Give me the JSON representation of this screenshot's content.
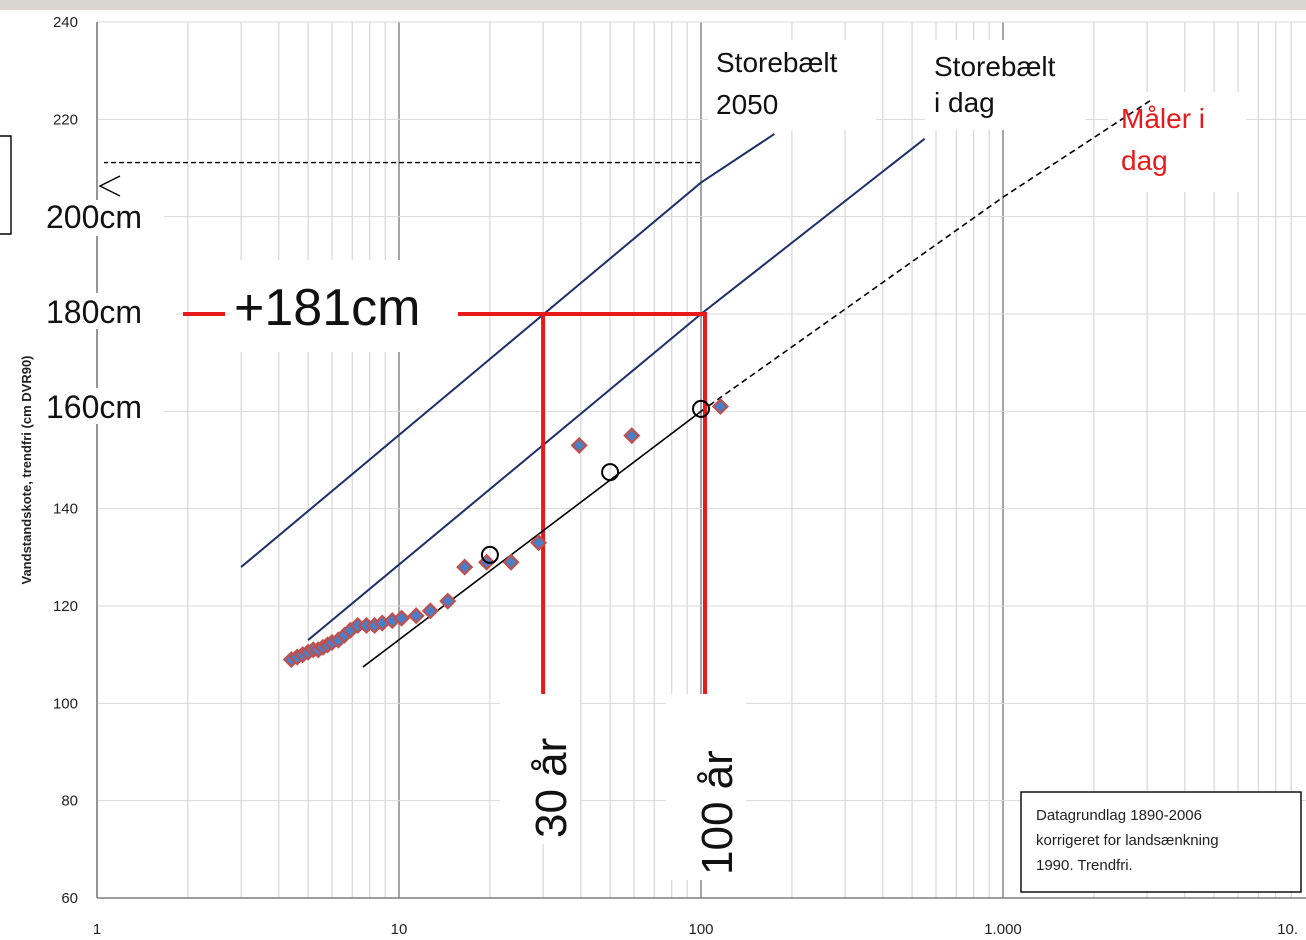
{
  "chart_data": {
    "type": "scatter",
    "x_scale": "log",
    "xlim": [
      1,
      10000
    ],
    "ylim": [
      60,
      240
    ],
    "grid": true,
    "ylabel": "Vandstandskote, trendfri (cm DVR90)",
    "y_ticks": [
      "60",
      "80",
      "100",
      "120",
      "140",
      "160",
      "180",
      "200",
      "220",
      "240"
    ],
    "x_ticks": [
      "1",
      "10",
      "100",
      "1.000",
      "10."
    ],
    "series": [
      {
        "name": "",
        "kind": "markers",
        "color": "#4a7fc8",
        "edge_color": "#c0504d",
        "points": [
          [
            4.4,
            109
          ],
          [
            4.6,
            109.5
          ],
          [
            4.8,
            110
          ],
          [
            5.0,
            110.5
          ],
          [
            5.2,
            111
          ],
          [
            5.4,
            111
          ],
          [
            5.6,
            111.5
          ],
          [
            5.8,
            112
          ],
          [
            6.0,
            112.5
          ],
          [
            6.3,
            113
          ],
          [
            6.6,
            114
          ],
          [
            6.9,
            115
          ],
          [
            7.3,
            116
          ],
          [
            7.8,
            116
          ],
          [
            8.3,
            116
          ],
          [
            8.8,
            116.5
          ],
          [
            9.5,
            117
          ],
          [
            10.2,
            117.5
          ],
          [
            11.4,
            118
          ],
          [
            12.7,
            119
          ],
          [
            14.5,
            121
          ],
          [
            16.5,
            128
          ],
          [
            19.5,
            129
          ],
          [
            23.5,
            129
          ],
          [
            29.0,
            133
          ],
          [
            39.5,
            153
          ],
          [
            59.0,
            155
          ],
          [
            116.0,
            161
          ]
        ]
      },
      {
        "name": "",
        "kind": "fit",
        "color": "#000000",
        "points": [
          [
            7.6,
            112
          ],
          [
            100,
            160
          ]
        ],
        "circle_points": [
          [
            20,
            130.5
          ],
          [
            50,
            147.5
          ],
          [
            100,
            160.5
          ]
        ]
      },
      {
        "name": "",
        "kind": "extrapolation",
        "color": "#000000",
        "points": [
          [
            100,
            160
          ],
          [
            1000,
            204
          ],
          [
            3100,
            224
          ]
        ]
      },
      {
        "name": "",
        "kind": "line",
        "color": "#1f2f6b",
        "points": [
          [
            3,
            128
          ],
          [
            100,
            207
          ],
          [
            175,
            217
          ]
        ]
      },
      {
        "name": "",
        "kind": "line",
        "color": "#1f2f6b",
        "points": [
          [
            5,
            113
          ],
          [
            100,
            180
          ],
          [
            550,
            216
          ]
        ]
      }
    ],
    "annotations": {
      "storebaelt_2050": "Storebælt\n2050",
      "storebaelt_i_dag": "Storebælt\ni dag",
      "maler_i_dag": "Måler i\ndag",
      "maler_color": "#e8191a",
      "label_200": "200cm",
      "label_180": "180cm",
      "label_160": "160cm",
      "plus_181": "+181cm",
      "label_30": "30 år",
      "label_100": "100 år",
      "red_color": "#e8191a",
      "info_box": "Datagrundlag 1890-2006\nkorrigeret for landsænkning\n1990. Trendfri."
    },
    "markers": {
      "return_periods": [
        30,
        100
      ],
      "level_180": 180,
      "level_207": 207
    }
  }
}
